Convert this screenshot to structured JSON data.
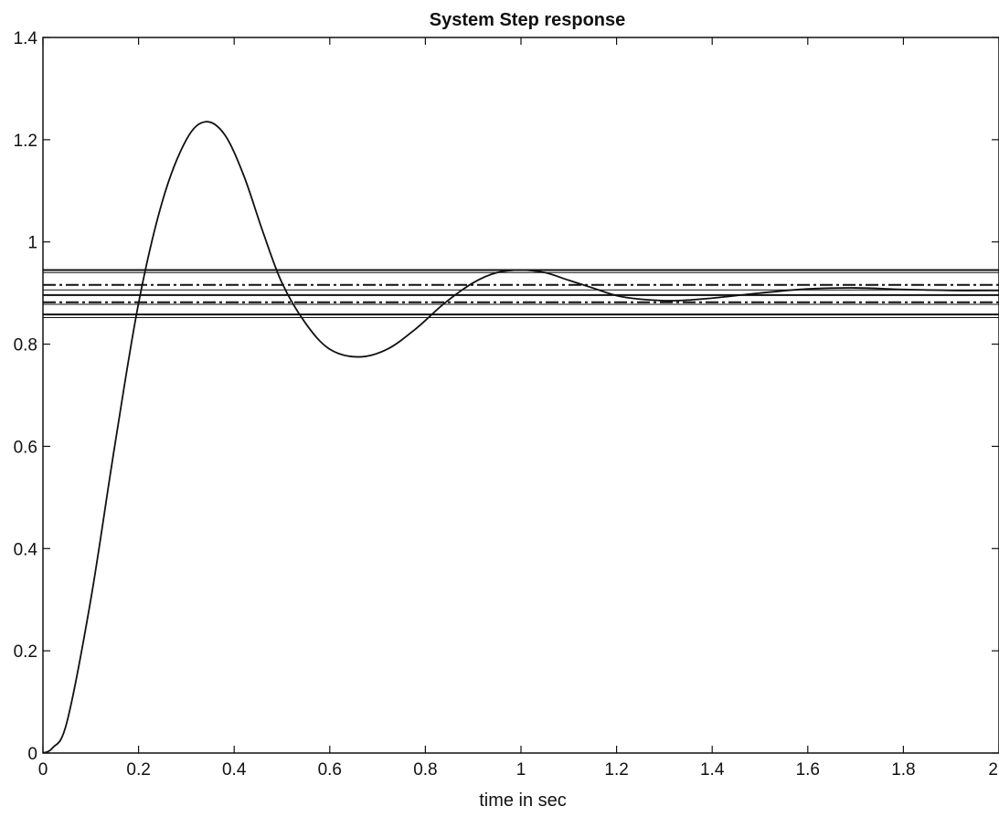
{
  "chart_data": {
    "type": "line",
    "title": "System Step response",
    "xlabel": "time in sec",
    "ylabel": "",
    "xlim": [
      0,
      2
    ],
    "ylim": [
      0,
      1.4
    ],
    "x_ticks": [
      "0",
      "0.2",
      "0.4",
      "0.6",
      "0.8",
      "1",
      "1.2",
      "1.4",
      "1.6",
      "1.8",
      "2"
    ],
    "y_ticks": [
      "0",
      "0.2",
      "0.4",
      "0.6",
      "0.8",
      "1",
      "1.2",
      "1.4"
    ],
    "grid": false,
    "series": [
      {
        "style": "solid",
        "x": [
          0,
          0.02,
          0.05,
          0.1,
          0.15,
          0.2,
          0.25,
          0.3,
          0.34,
          0.38,
          0.42,
          0.46,
          0.5,
          0.55,
          0.6,
          0.66,
          0.72,
          0.78,
          0.84,
          0.9,
          0.95,
          1.0,
          1.05,
          1.1,
          1.15,
          1.2,
          1.25,
          1.32,
          1.4,
          1.5,
          1.6,
          1.7,
          1.8,
          1.9,
          2.0
        ],
        "y": [
          0,
          0.01,
          0.06,
          0.3,
          0.6,
          0.88,
          1.08,
          1.2,
          1.235,
          1.21,
          1.13,
          1.02,
          0.92,
          0.84,
          0.79,
          0.775,
          0.79,
          0.83,
          0.88,
          0.92,
          0.94,
          0.945,
          0.94,
          0.925,
          0.91,
          0.895,
          0.888,
          0.885,
          0.89,
          0.9,
          0.908,
          0.91,
          0.907,
          0.905,
          0.905
        ]
      }
    ],
    "reference_lines": [
      {
        "y": 0.945,
        "style": "solid",
        "weight": "thick"
      },
      {
        "y": 0.94,
        "style": "solid",
        "weight": "thin"
      },
      {
        "y": 0.916,
        "style": "dashdot",
        "weight": "thick"
      },
      {
        "y": 0.906,
        "style": "solid",
        "weight": "thin"
      },
      {
        "y": 0.896,
        "style": "solid",
        "weight": "thick"
      },
      {
        "y": 0.882,
        "style": "dashdot",
        "weight": "thick"
      },
      {
        "y": 0.878,
        "style": "solid",
        "weight": "thin"
      },
      {
        "y": 0.858,
        "style": "solid",
        "weight": "thick"
      },
      {
        "y": 0.852,
        "style": "solid",
        "weight": "thin"
      }
    ]
  }
}
